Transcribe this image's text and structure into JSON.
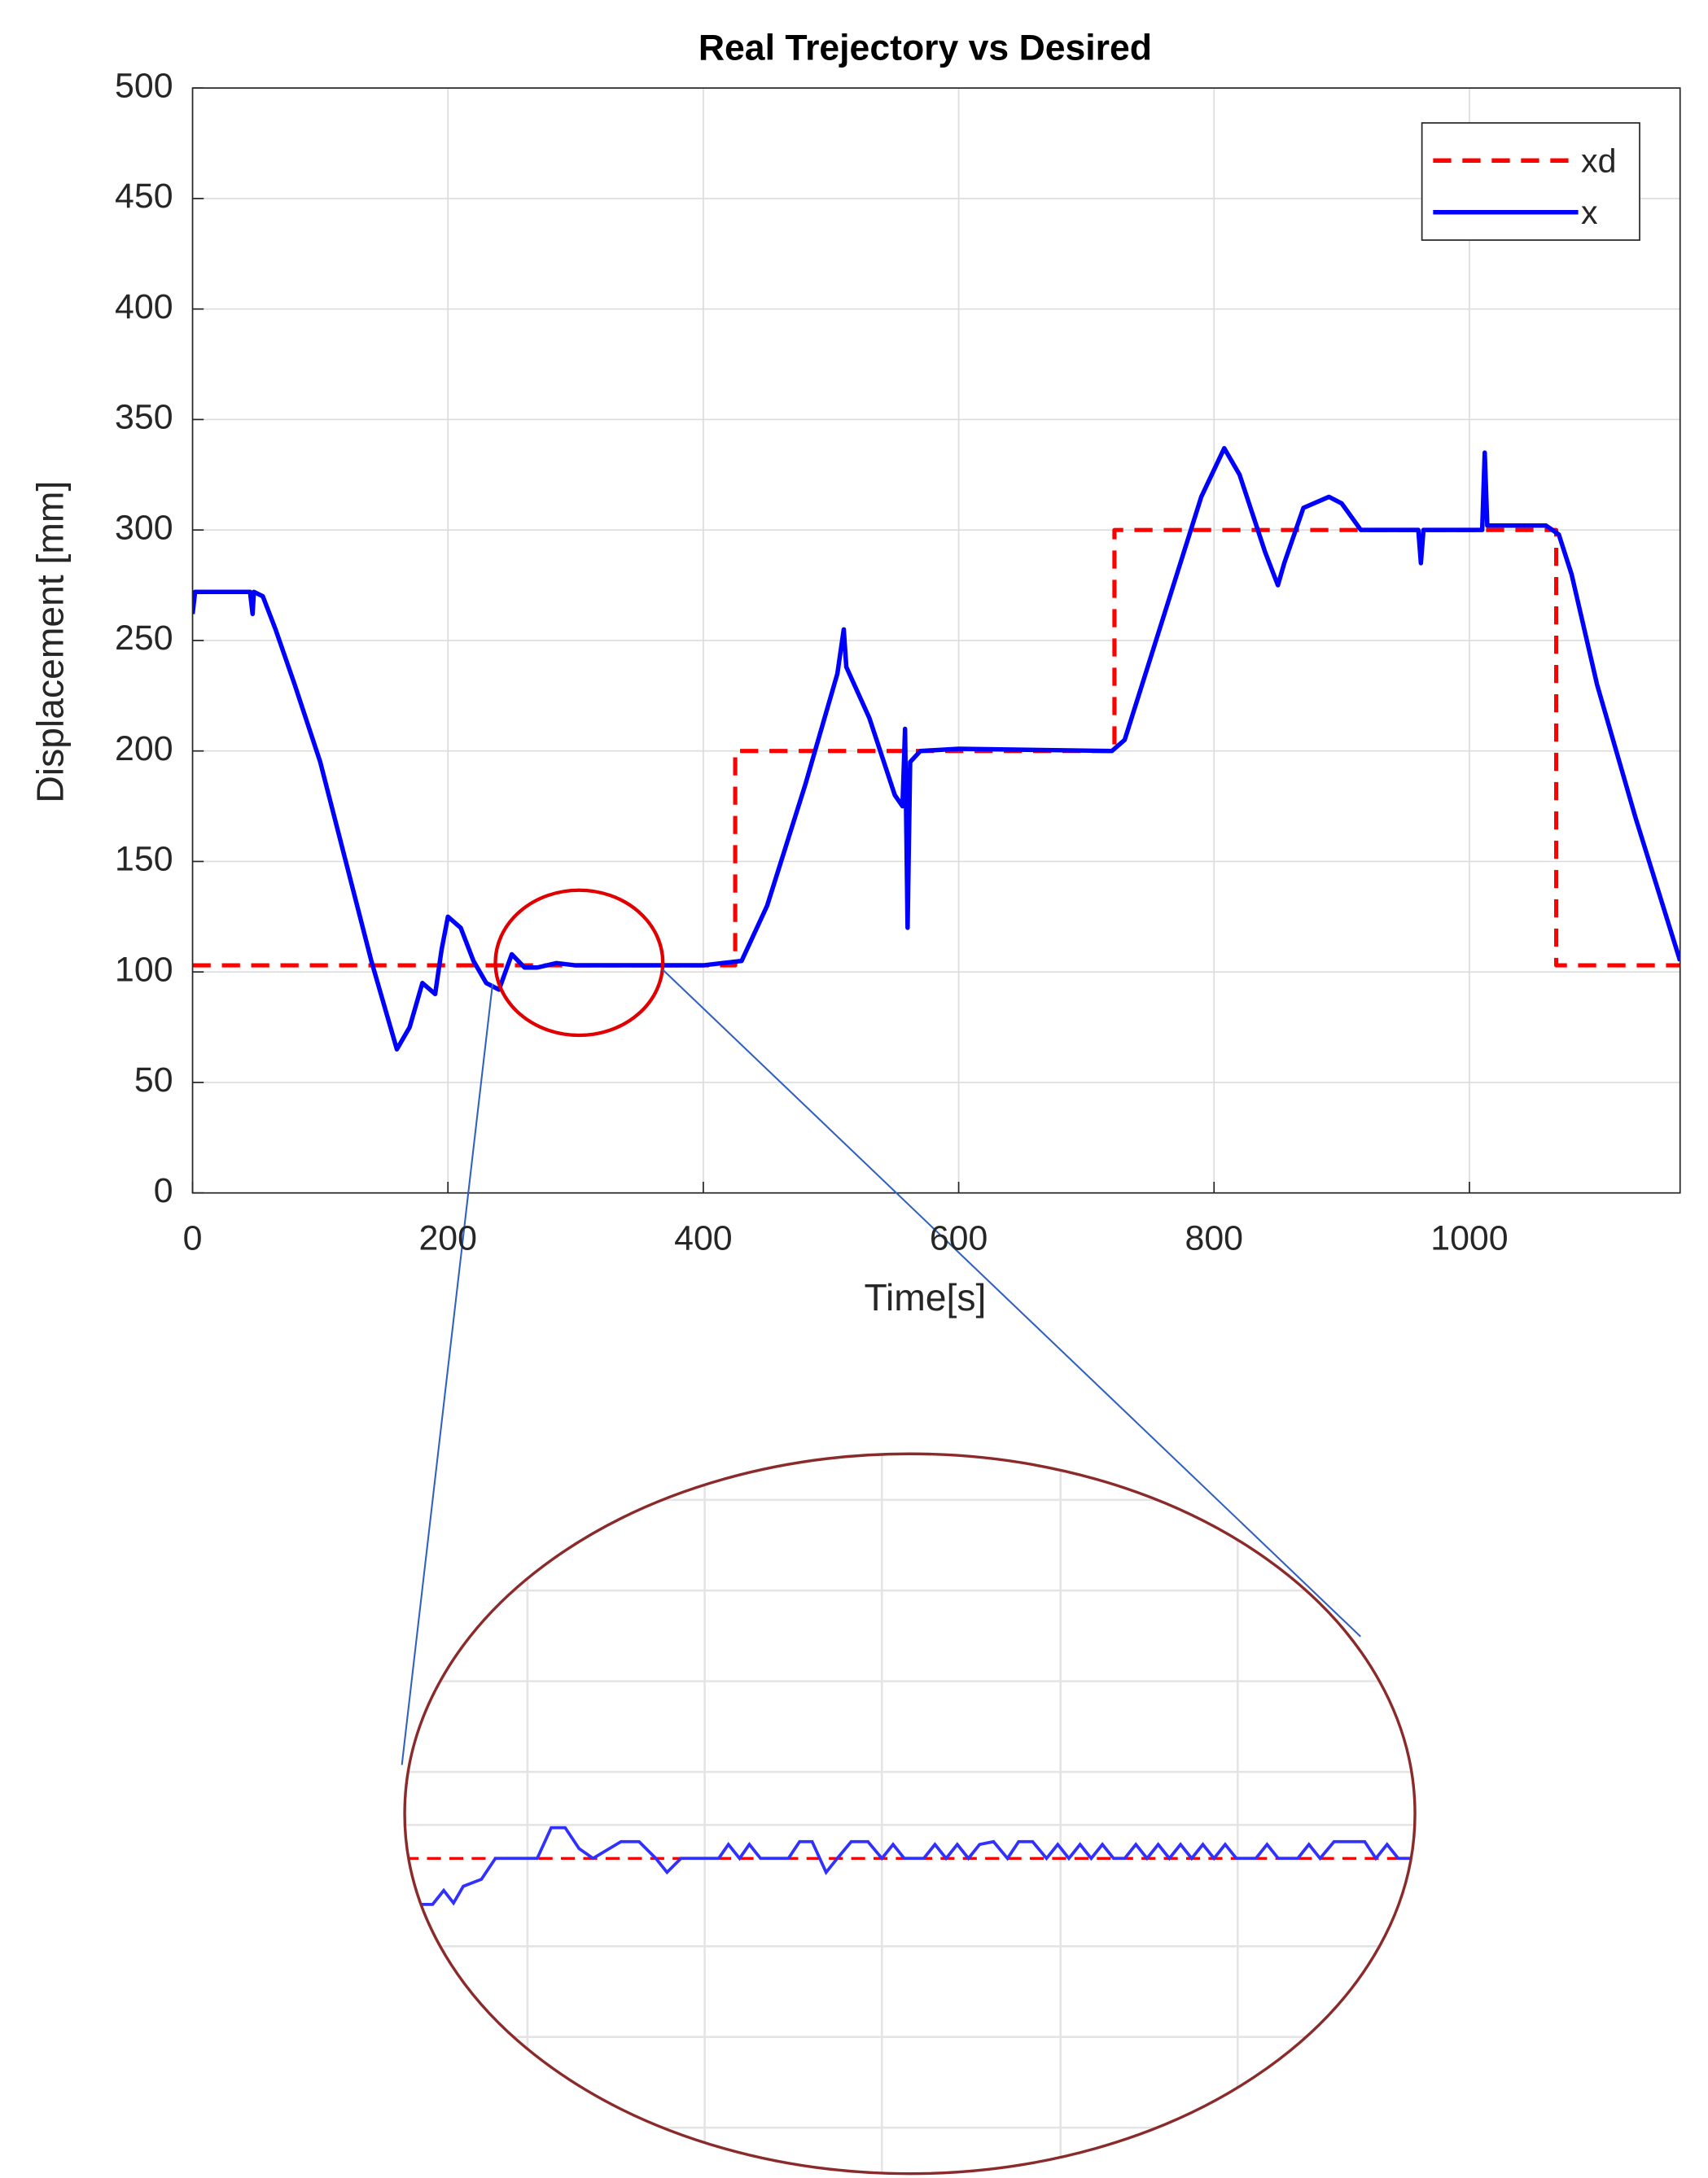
{
  "chart_data": {
    "type": "line",
    "title": "Real Trejectory vs Desired",
    "x_label": "Time[s]",
    "y_label": "Displacement [mm]",
    "xlim": [
      0,
      1165
    ],
    "ylim": [
      0,
      500
    ],
    "xticks": [
      0,
      200,
      400,
      600,
      800,
      1000
    ],
    "yticks": [
      0,
      50,
      100,
      150,
      200,
      250,
      300,
      350,
      400,
      450,
      500
    ],
    "grid": true,
    "legend": "upper right",
    "series": [
      {
        "name": "xd",
        "color": "#ff0000",
        "dashed": true,
        "x": [
          0,
          425,
          425,
          722,
          722,
          1068,
          1068,
          1165
        ],
        "values": [
          103,
          103,
          200,
          200,
          300,
          300,
          103,
          103
        ]
      },
      {
        "name": "x",
        "color": "#0000ff",
        "dashed": false,
        "x": [
          0,
          2,
          45,
          47,
          48,
          55,
          65,
          80,
          100,
          120,
          140,
          160,
          170,
          180,
          190,
          195,
          200,
          210,
          220,
          230,
          240,
          250,
          260,
          270,
          285,
          300,
          400,
          430,
          450,
          480,
          505,
          510,
          512,
          530,
          550,
          556,
          558,
          560,
          562,
          570,
          600,
          720,
          730,
          760,
          790,
          808,
          820,
          840,
          850,
          855,
          870,
          890,
          900,
          915,
          960,
          962,
          964,
          1010,
          1012,
          1014,
          1060,
          1070,
          1080,
          1100,
          1130,
          1165
        ],
        "values": [
          262,
          272,
          272,
          262,
          272,
          270,
          255,
          230,
          195,
          150,
          105,
          65,
          75,
          95,
          90,
          110,
          125,
          120,
          105,
          95,
          92,
          108,
          102,
          102,
          104,
          103,
          103,
          105,
          130,
          185,
          235,
          255,
          238,
          215,
          180,
          175,
          210,
          120,
          195,
          200,
          201,
          200,
          205,
          260,
          315,
          337,
          325,
          290,
          275,
          285,
          310,
          315,
          312,
          300,
          300,
          285,
          300,
          300,
          335,
          302,
          302,
          298,
          280,
          230,
          170,
          105
        ]
      }
    ]
  }
}
